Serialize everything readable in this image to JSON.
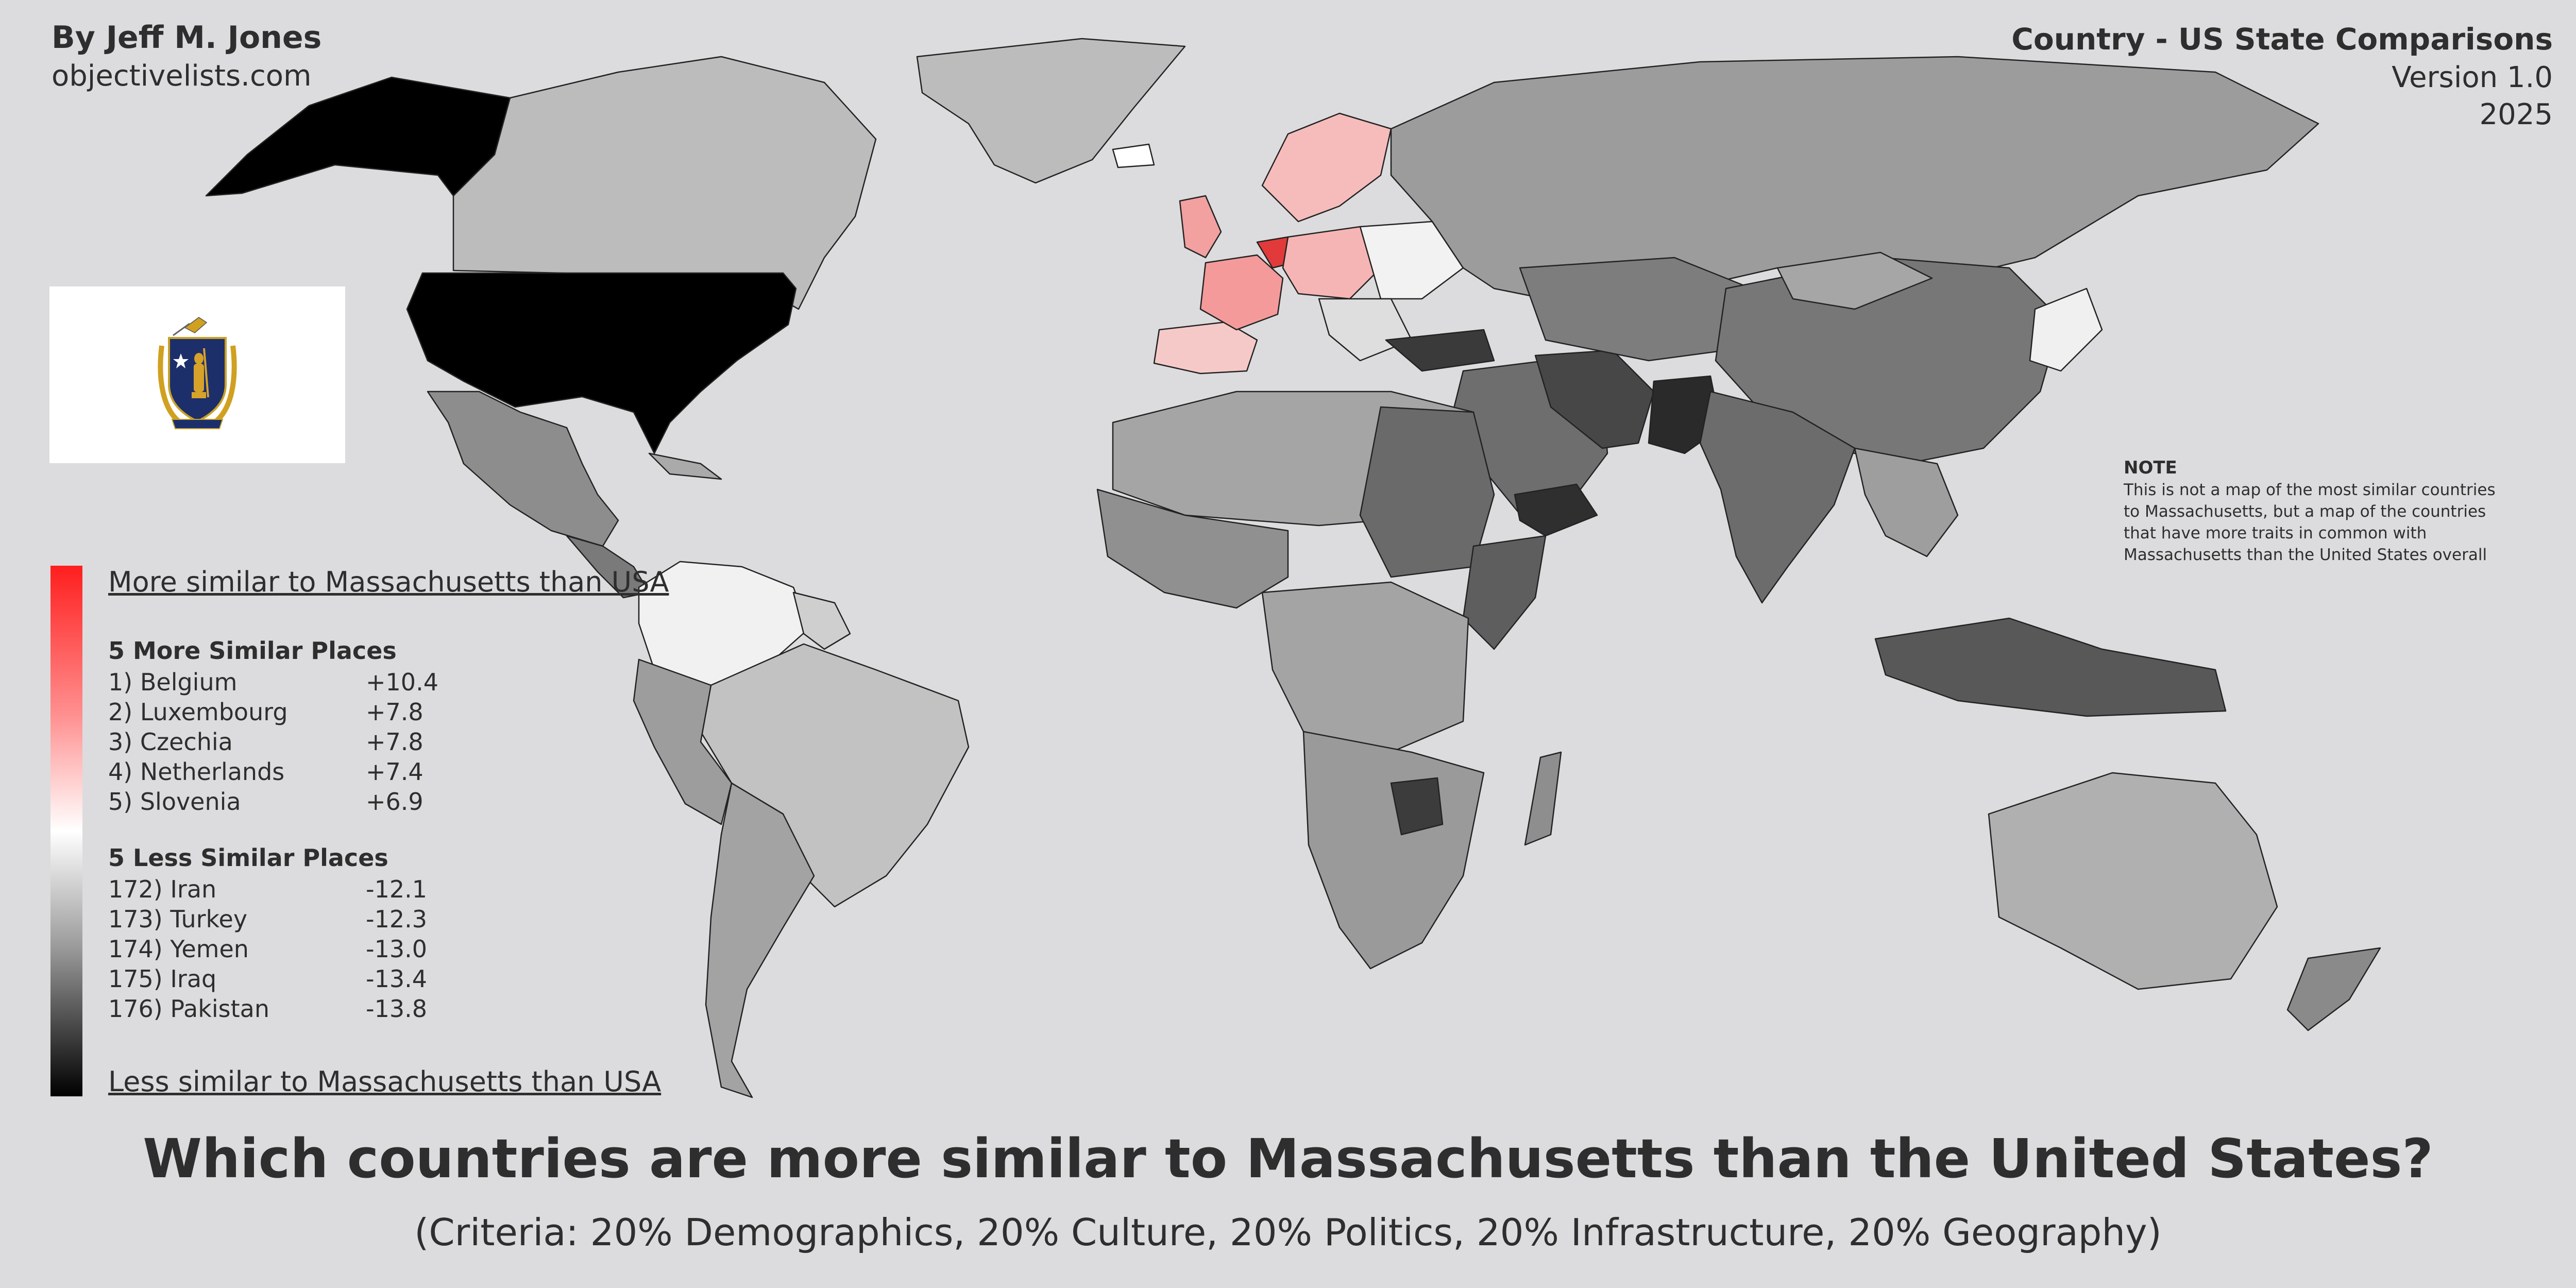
{
  "header": {
    "author": "By Jeff M. Jones",
    "site": "objectivelists.com",
    "series_title": "Country - US State Comparisons",
    "version": "Version 1.0",
    "year": "2025"
  },
  "legend": {
    "top_label": "More similar to Massachusetts than USA",
    "bottom_label": "Less similar to Massachusetts than USA",
    "scale_colors": [
      "#ff1e1e",
      "#ffffff",
      "#000000"
    ],
    "more_similar": {
      "heading": "5 More Similar Places",
      "items": [
        {
          "rank": "1) Belgium",
          "score": "+10.4"
        },
        {
          "rank": "2) Luxembourg",
          "score": "+7.8"
        },
        {
          "rank": "3) Czechia",
          "score": "+7.8"
        },
        {
          "rank": "4) Netherlands",
          "score": "+7.4"
        },
        {
          "rank": "5) Slovenia",
          "score": "+6.9"
        }
      ]
    },
    "less_similar": {
      "heading": "5 Less Similar Places",
      "items": [
        {
          "rank": "172) Iran",
          "score": "-12.1"
        },
        {
          "rank": "173) Turkey",
          "score": "-12.3"
        },
        {
          "rank": "174) Yemen",
          "score": "-13.0"
        },
        {
          "rank": "175) Iraq",
          "score": "-13.4"
        },
        {
          "rank": "176) Pakistan",
          "score": "-13.8"
        }
      ]
    }
  },
  "note": {
    "heading": "NOTE",
    "body": "This is not a map of the most similar countries to Massachusetts, but a map of the countries that have more traits in common with Massachusetts than the United States overall"
  },
  "footer": {
    "title": "Which countries are more similar to Massachusetts than the United States?",
    "criteria": "(Criteria: 20% Demographics, 20% Culture, 20% Politics, 20% Infrastructure, 20% Geography)"
  },
  "colors": {
    "background": "#dcdcde",
    "usa": "#000000",
    "most_similar": "#ff1e1e",
    "least_similar": "#000000"
  }
}
